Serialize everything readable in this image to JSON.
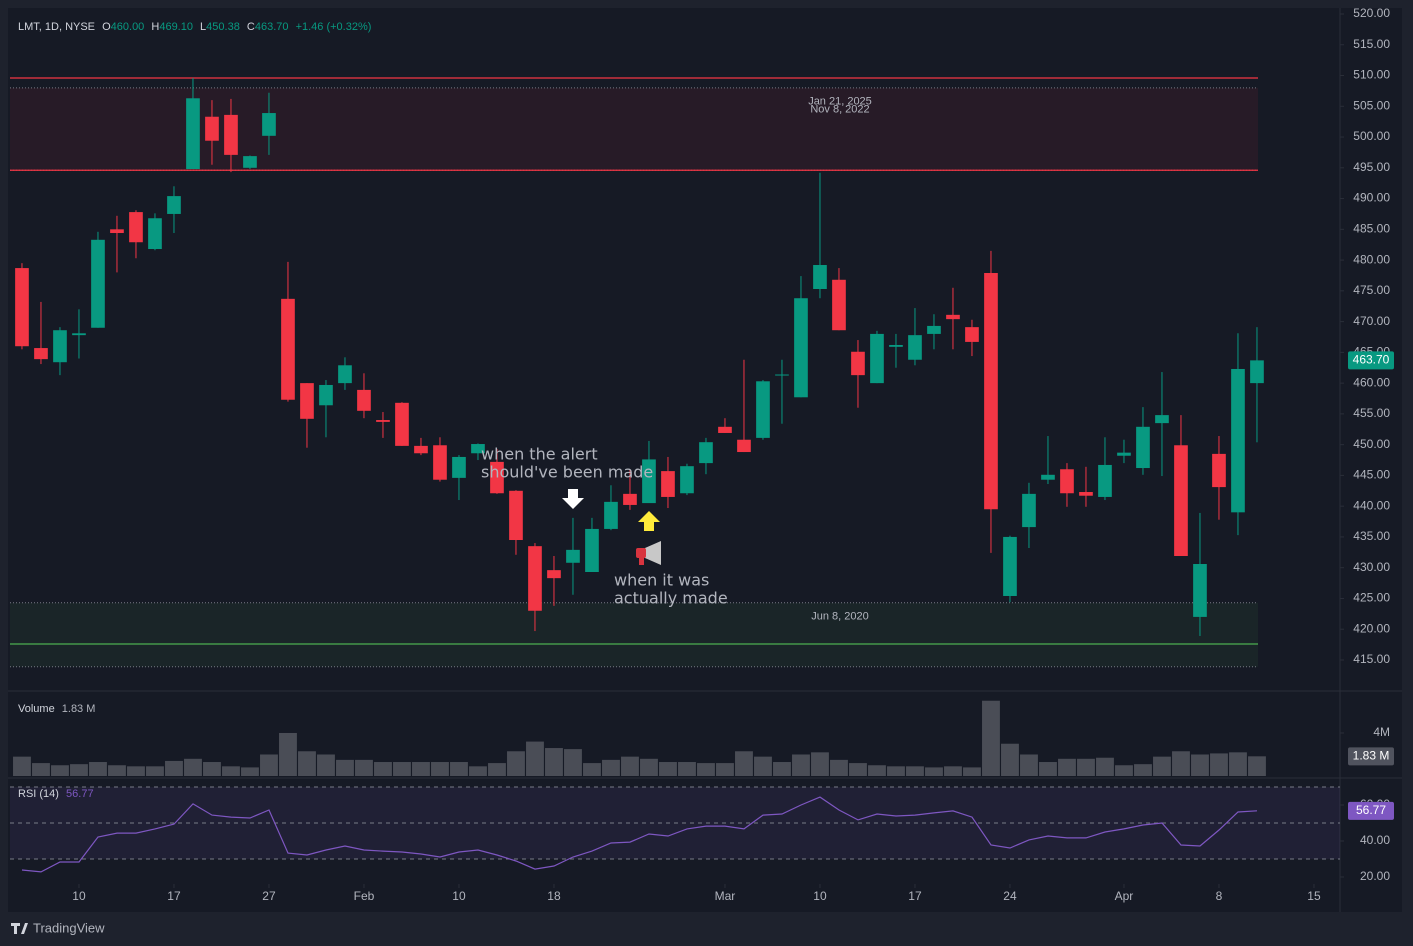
{
  "chart_data": [
    {
      "type": "candlestick",
      "title": "LMT, 1D, NYSE",
      "legend": [
        {
          "key": "O",
          "value": "460.00"
        },
        {
          "key": "H",
          "value": "469.10"
        },
        {
          "key": "L",
          "value": "450.38"
        },
        {
          "key": "C",
          "value": "463.70"
        }
      ],
      "change": "+1.46 (+0.32%)",
      "last_label": "463.70",
      "up_color": "#089981",
      "down_color": "#f23645",
      "open": [
        478.7,
        465.7,
        463.4,
        467.8,
        469.0,
        485.0,
        487.8,
        481.8,
        487.5,
        494.8,
        503.3,
        503.6,
        495.0,
        500.2,
        473.7,
        460.0,
        456.4,
        460.0,
        458.9,
        454.0,
        456.8,
        449.8,
        449.9,
        444.6,
        448.6,
        447.2,
        442.5,
        433.5,
        429.6,
        430.8,
        429.3,
        436.3,
        442.0,
        440.5,
        445.7,
        442.1,
        447.0,
        452.9,
        450.8,
        451.1,
        461.3,
        457.7,
        475.3,
        476.8,
        465.1,
        460.0,
        465.9,
        463.8,
        468.0,
        471.1,
        469.1,
        477.9,
        425.4,
        436.6,
        444.3,
        446.0,
        442.3,
        441.5,
        448.2,
        446.2,
        453.5,
        449.9,
        422.0,
        448.5,
        439.0,
        460.0
      ],
      "high": [
        479.5,
        473.2,
        469.1,
        472.0,
        484.6,
        487.2,
        488.1,
        487.6,
        492.0,
        509.6,
        506.0,
        506.2,
        497.0,
        507.2,
        479.7,
        460.0,
        460.5,
        464.2,
        461.6,
        455.3,
        456.9,
        451.1,
        451.2,
        448.3,
        450.2,
        449.3,
        442.6,
        434.0,
        431.9,
        438.1,
        438.1,
        443.4,
        445.9,
        450.6,
        448.0,
        446.9,
        451.1,
        454.3,
        463.8,
        460.5,
        463.8,
        477.4,
        494.2,
        478.7,
        467.0,
        468.5,
        468.0,
        472.2,
        471.2,
        475.5,
        470.3,
        481.5,
        435.2,
        443.8,
        451.4,
        447.0,
        446.4,
        451.2,
        450.8,
        456.1,
        461.8,
        454.8,
        438.9,
        451.4,
        468.1,
        469.1
      ],
      "low": [
        465.5,
        463.1,
        461.3,
        464.0,
        469.0,
        478.0,
        480.3,
        481.6,
        484.4,
        494.8,
        495.5,
        494.3,
        494.8,
        497.1,
        457.0,
        449.5,
        451.2,
        458.9,
        454.3,
        451.1,
        449.8,
        448.3,
        444.0,
        441.0,
        447.5,
        442.0,
        432.1,
        419.7,
        423.8,
        425.6,
        429.3,
        436.1,
        439.4,
        441.0,
        439.7,
        441.8,
        445.2,
        451.9,
        448.8,
        450.8,
        453.4,
        457.7,
        473.8,
        468.6,
        456.0,
        460.0,
        462.5,
        462.9,
        465.5,
        465.5,
        464.4,
        432.4,
        424.4,
        433.2,
        443.6,
        439.9,
        439.9,
        441.0,
        447.0,
        445.1,
        444.9,
        431.9,
        418.9,
        437.8,
        435.3,
        450.38
      ],
      "close": [
        466.0,
        463.9,
        468.6,
        468.1,
        483.3,
        484.4,
        482.9,
        486.8,
        490.4,
        506.3,
        499.4,
        497.1,
        496.9,
        503.9,
        457.3,
        454.2,
        459.7,
        462.9,
        455.5,
        453.7,
        449.8,
        448.6,
        444.3,
        448.0,
        450.1,
        442.1,
        434.5,
        423.0,
        428.3,
        432.9,
        436.3,
        440.7,
        440.2,
        447.6,
        441.5,
        446.5,
        450.4,
        451.9,
        448.8,
        460.3,
        461.4,
        473.8,
        479.2,
        468.6,
        461.3,
        468.0,
        466.2,
        467.8,
        469.3,
        470.4,
        466.7,
        439.5,
        435.0,
        442.0,
        445.1,
        442.1,
        441.7,
        446.7,
        448.7,
        452.9,
        454.8,
        431.9,
        430.6,
        443.1,
        462.3,
        463.7
      ],
      "xlim": [
        -0.63,
        69.37
      ],
      "xticks": [
        {
          "value": 3,
          "label": "10"
        },
        {
          "value": 8,
          "label": "17"
        },
        {
          "value": 13,
          "label": "27"
        },
        {
          "value": 18,
          "label": "Feb"
        },
        {
          "value": 23,
          "label": "10"
        },
        {
          "value": 28,
          "label": "18"
        },
        {
          "value": 37,
          "label": "Mar"
        },
        {
          "value": 42,
          "label": "10"
        },
        {
          "value": 47,
          "label": "17"
        },
        {
          "value": 52,
          "label": "24"
        },
        {
          "value": 58,
          "label": "Apr"
        },
        {
          "value": 63,
          "label": "8"
        },
        {
          "value": 68,
          "label": "15"
        }
      ],
      "ylim": [
        410.12,
        520.65
      ],
      "yticks": [
        {
          "value": 415,
          "label": "415.00"
        },
        {
          "value": 420,
          "label": "420.00"
        },
        {
          "value": 425,
          "label": "425.00"
        },
        {
          "value": 430,
          "label": "430.00"
        },
        {
          "value": 435,
          "label": "435.00"
        },
        {
          "value": 440,
          "label": "440.00"
        },
        {
          "value": 445,
          "label": "445.00"
        },
        {
          "value": 450,
          "label": "450.00"
        },
        {
          "value": 455,
          "label": "455.00"
        },
        {
          "value": 460,
          "label": "460.00"
        },
        {
          "value": 465,
          "label": "465.00"
        },
        {
          "value": 470,
          "label": "470.00"
        },
        {
          "value": 475,
          "label": "475.00"
        },
        {
          "value": 480,
          "label": "480.00"
        },
        {
          "value": 485,
          "label": "485.00"
        },
        {
          "value": 490,
          "label": "490.00"
        },
        {
          "value": 495,
          "label": "495.00"
        },
        {
          "value": 500,
          "label": "500.00"
        },
        {
          "value": 505,
          "label": "505.00"
        },
        {
          "value": 510,
          "label": "510.00"
        },
        {
          "value": 515,
          "label": "515.00"
        },
        {
          "value": 520,
          "label": "520.00"
        }
      ],
      "zones": [
        {
          "labels": [
            "Jan 21, 2025",
            "Nov 8, 2022"
          ],
          "from": 508.0,
          "to": 494.6,
          "lines": [
            509.6,
            494.6
          ],
          "color": "#f23645"
        },
        {
          "labels": [
            "Jun 8, 2020"
          ],
          "from": 424.3,
          "to": 413.9,
          "lines": [
            417.6
          ],
          "color": "#4caf50"
        }
      ],
      "annotations": [
        {
          "lines": [
            "when the alert",
            "should've been made"
          ],
          "color": "#ffffff"
        },
        {
          "lines": [
            "when it was",
            "actually made"
          ],
          "color": "#ffeb3b"
        }
      ]
    },
    {
      "type": "bar",
      "title": "Volume",
      "last_label": "1.83 M",
      "color": "#4a4d56",
      "values": [
        1.8,
        1.2,
        1.0,
        1.1,
        1.3,
        1.0,
        0.9,
        0.9,
        1.4,
        1.6,
        1.3,
        0.9,
        0.8,
        2.0,
        4.0,
        2.3,
        2.0,
        1.5,
        1.5,
        1.3,
        1.3,
        1.3,
        1.3,
        1.3,
        0.9,
        1.2,
        2.3,
        3.2,
        2.6,
        2.5,
        1.2,
        1.5,
        1.8,
        1.6,
        1.3,
        1.3,
        1.2,
        1.2,
        2.3,
        1.8,
        1.3,
        2.0,
        2.2,
        1.5,
        1.2,
        1.0,
        0.9,
        0.9,
        0.8,
        0.9,
        0.8,
        7.0,
        3.0,
        2.0,
        1.3,
        1.6,
        1.6,
        1.7,
        1.0,
        1.1,
        1.8,
        2.3,
        2.0,
        2.1,
        2.2,
        1.83
      ],
      "ylim": [
        0,
        7.81
      ],
      "yticks": [
        {
          "value": 4,
          "label": "4M"
        }
      ]
    },
    {
      "type": "line",
      "title": "RSI (14)",
      "last_label": "56.77",
      "color": "#7e57c2",
      "values": [
        23.9,
        22.8,
        28.3,
        28.3,
        42.2,
        44.4,
        44.4,
        46.7,
        49.4,
        60.6,
        54.4,
        53.3,
        52.8,
        57.2,
        33.3,
        32.2,
        35.0,
        37.2,
        35.0,
        34.4,
        33.9,
        32.8,
        31.1,
        33.9,
        35.0,
        32.2,
        28.9,
        24.4,
        26.1,
        31.1,
        34.4,
        38.9,
        39.4,
        43.9,
        42.8,
        46.7,
        48.3,
        48.3,
        46.7,
        54.4,
        55.0,
        60.0,
        64.4,
        57.2,
        51.7,
        55.0,
        53.9,
        54.4,
        55.6,
        56.7,
        53.3,
        37.8,
        36.1,
        40.6,
        42.8,
        41.7,
        41.7,
        45.0,
        46.7,
        48.9,
        50.0,
        37.8,
        37.2,
        46.1,
        56.1,
        56.77
      ],
      "levels": [
        70,
        50,
        30
      ],
      "ylim": [
        16.1,
        73.9
      ],
      "yticks": [
        {
          "value": 20,
          "label": "20.00"
        },
        {
          "value": 40,
          "label": "40.00"
        },
        {
          "value": 60,
          "label": "60.00"
        }
      ]
    }
  ]
}
